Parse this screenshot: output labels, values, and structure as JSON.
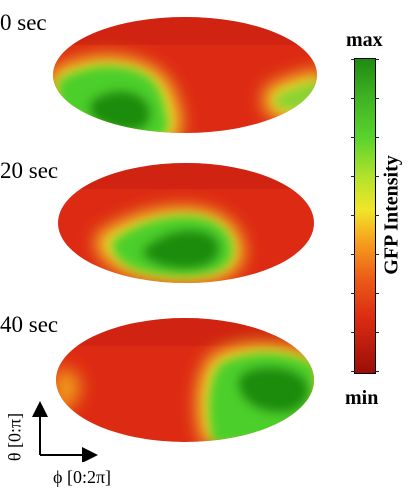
{
  "frames": [
    {
      "label": "0 sec"
    },
    {
      "label": "20 sec"
    },
    {
      "label": "40 sec"
    }
  ],
  "colorbar": {
    "max_label": "max",
    "min_label": "min",
    "title": "GFP Intensity",
    "colors": [
      "#1f8a12",
      "#3eb222",
      "#59d32c",
      "#b6e22c",
      "#f0e629",
      "#f6a11e",
      "#ec5b17",
      "#dc2d12",
      "#9a0e08"
    ]
  },
  "axes": {
    "theta_label": "θ [0:π]",
    "phi_label": "ϕ [0:2π]"
  },
  "colors": {
    "background_red": "#dd2a13",
    "hotspot_green": "#1e8c10",
    "edge_yellow": "#f2e12a"
  }
}
